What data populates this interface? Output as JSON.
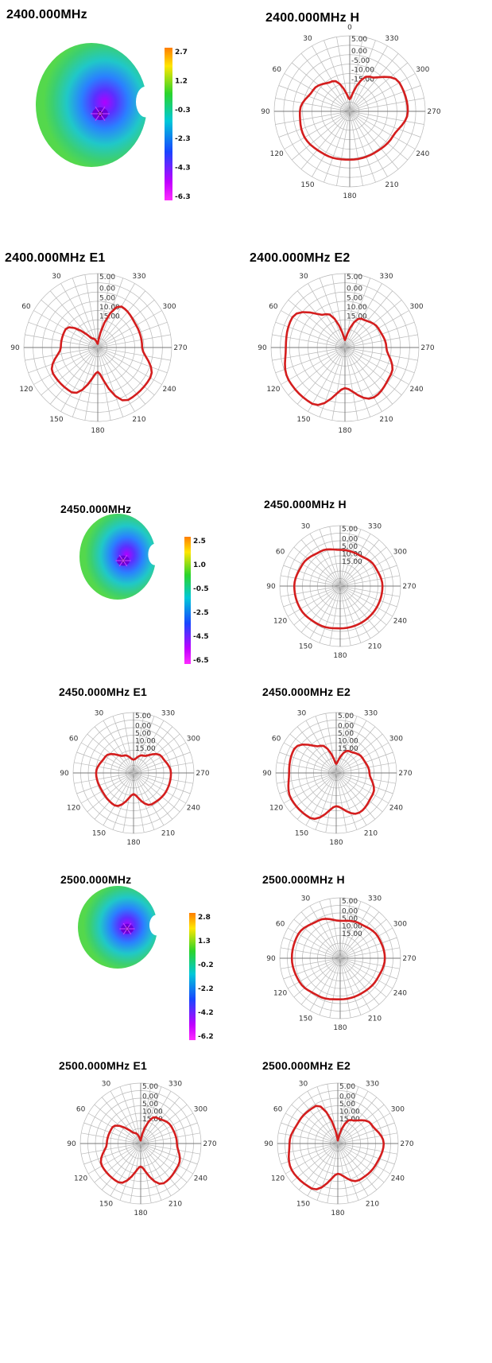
{
  "chart_data": [
    {
      "type": "surface3d",
      "title": "2400.000MHz",
      "colorbar_ticks": [
        "2.7",
        "1.2",
        "-0.3",
        "-2.3",
        "-4.3",
        "-6.3"
      ],
      "colorbar_colors": [
        "#ff7e00",
        "#ffe600",
        "#2bd42b",
        "#00c8d8",
        "#1846ff",
        "#c000ff",
        "#ff2cff"
      ]
    },
    {
      "type": "polar",
      "title": "2400.000MHz  H",
      "radial_labels": [
        "5.00",
        "0.00",
        "-5.00",
        "-10.00",
        "-15.00"
      ],
      "angle_labels": [
        "0",
        "30",
        "60",
        "90",
        "120",
        "150",
        "180",
        "210",
        "240",
        "270",
        "300",
        "330"
      ],
      "angles": [
        0,
        30,
        60,
        90,
        120,
        150,
        180,
        210,
        240,
        270,
        300,
        330
      ],
      "r": [
        0.16,
        0.46,
        0.56,
        0.66,
        0.69,
        0.66,
        0.64,
        0.64,
        0.66,
        0.77,
        0.76,
        0.53
      ]
    },
    {
      "type": "polar",
      "title": "2400.000MHz  E1",
      "radial_labels": [
        "5.00",
        "0.00",
        "5.00",
        "10.00",
        "15.00"
      ],
      "angle_labels": [
        "",
        "30",
        "60",
        "90",
        "120",
        "150",
        "180",
        "210",
        "240",
        "270",
        "300",
        "330"
      ],
      "angles": [
        0,
        30,
        60,
        90,
        120,
        150,
        180,
        210,
        240,
        270,
        300,
        330
      ],
      "r": [
        0.05,
        0.14,
        0.5,
        0.5,
        0.7,
        0.7,
        0.33,
        0.82,
        0.82,
        0.6,
        0.6,
        0.64
      ]
    },
    {
      "type": "polar",
      "title": "2400.000MHz  E2",
      "radial_labels": [
        "5.00",
        "0.00",
        "5.00",
        "10.00",
        "15.00"
      ],
      "angle_labels": [
        "",
        "30",
        "60",
        "90",
        "120",
        "150",
        "180",
        "210",
        "240",
        "270",
        "300",
        "330"
      ],
      "angles": [
        0,
        30,
        60,
        90,
        120,
        150,
        180,
        210,
        240,
        270,
        300,
        330
      ],
      "r": [
        0.1,
        0.52,
        0.82,
        0.8,
        0.88,
        0.88,
        0.55,
        0.78,
        0.72,
        0.56,
        0.52,
        0.45
      ]
    },
    {
      "type": "surface3d",
      "title": "2450.000MHz",
      "colorbar_ticks": [
        "2.5",
        "1.0",
        "-0.5",
        "-2.5",
        "-4.5",
        "-6.5"
      ],
      "colorbar_colors": [
        "#ff7e00",
        "#ffe600",
        "#2bd42b",
        "#00c8d8",
        "#1846ff",
        "#c000ff",
        "#ff2cff"
      ]
    },
    {
      "type": "polar",
      "title": "2450.000MHz  H",
      "radial_labels": [
        "5.00",
        "0.00",
        "5.00",
        "10.00",
        "15.00"
      ],
      "angle_labels": [
        "",
        "30",
        "60",
        "90",
        "120",
        "150",
        "180",
        "210",
        "240",
        "270",
        "300",
        "330"
      ],
      "angles": [
        0,
        30,
        60,
        90,
        120,
        150,
        180,
        210,
        240,
        270,
        300,
        330
      ],
      "r": [
        0.6,
        0.66,
        0.72,
        0.76,
        0.76,
        0.73,
        0.7,
        0.7,
        0.7,
        0.7,
        0.66,
        0.6
      ]
    },
    {
      "type": "polar",
      "title": "2450.000MHz  E1",
      "radial_labels": [
        "5.00",
        "0.00",
        "5.00",
        "10.00",
        "15.00"
      ],
      "angle_labels": [
        "",
        "30",
        "60",
        "90",
        "120",
        "150",
        "180",
        "210",
        "240",
        "270",
        "300",
        "330"
      ],
      "angles": [
        0,
        30,
        60,
        90,
        120,
        150,
        180,
        210,
        240,
        270,
        300,
        330
      ],
      "r": [
        0.22,
        0.33,
        0.54,
        0.62,
        0.6,
        0.62,
        0.35,
        0.6,
        0.62,
        0.62,
        0.54,
        0.33
      ]
    },
    {
      "type": "polar",
      "title": "2450.000MHz  E2",
      "radial_labels": [
        "5.00",
        "0.00",
        "5.00",
        "10.00",
        "15.00"
      ],
      "angle_labels": [
        "",
        "30",
        "60",
        "90",
        "120",
        "150",
        "180",
        "210",
        "240",
        "270",
        "300",
        "330"
      ],
      "angles": [
        0,
        30,
        60,
        90,
        120,
        150,
        180,
        210,
        240,
        270,
        300,
        330
      ],
      "r": [
        0.15,
        0.52,
        0.8,
        0.78,
        0.86,
        0.86,
        0.55,
        0.76,
        0.7,
        0.55,
        0.5,
        0.42
      ]
    },
    {
      "type": "surface3d",
      "title": "2500.000MHz",
      "colorbar_ticks": [
        "2.8",
        "1.3",
        "-0.2",
        "-2.2",
        "-4.2",
        "-6.2"
      ],
      "colorbar_colors": [
        "#ff7e00",
        "#ffe600",
        "#2bd42b",
        "#00c8d8",
        "#1846ff",
        "#c000ff",
        "#ff2cff"
      ]
    },
    {
      "type": "polar",
      "title": "2500.000MHz  H",
      "radial_labels": [
        "5.00",
        "0.00",
        "5.00",
        "10.00",
        "15.00"
      ],
      "angle_labels": [
        "",
        "30",
        "60",
        "90",
        "120",
        "150",
        "180",
        "210",
        "240",
        "270",
        "300",
        "330"
      ],
      "angles": [
        0,
        30,
        60,
        90,
        120,
        150,
        180,
        210,
        240,
        270,
        300,
        330
      ],
      "r": [
        0.62,
        0.72,
        0.8,
        0.8,
        0.78,
        0.72,
        0.68,
        0.68,
        0.7,
        0.74,
        0.72,
        0.66
      ]
    },
    {
      "type": "polar",
      "title": "2500.000MHz  E1",
      "radial_labels": [
        "5.00",
        "0.00",
        "5.00",
        "10.00",
        "15.00"
      ],
      "angle_labels": [
        "",
        "30",
        "60",
        "90",
        "120",
        "150",
        "180",
        "210",
        "240",
        "270",
        "300",
        "330"
      ],
      "angles": [
        0,
        30,
        60,
        90,
        120,
        150,
        180,
        210,
        240,
        270,
        300,
        330
      ],
      "r": [
        0.05,
        0.2,
        0.54,
        0.56,
        0.74,
        0.74,
        0.38,
        0.76,
        0.72,
        0.6,
        0.58,
        0.5
      ]
    },
    {
      "type": "polar",
      "title": "2500.000MHz  E2",
      "radial_labels": [
        "5.00",
        "0.00",
        "5.00",
        "10.00",
        "15.00"
      ],
      "angle_labels": [
        "",
        "30",
        "60",
        "90",
        "120",
        "150",
        "180",
        "210",
        "240",
        "270",
        "300",
        "330"
      ],
      "angles": [
        0,
        30,
        60,
        90,
        120,
        150,
        180,
        210,
        240,
        270,
        300,
        330
      ],
      "r": [
        0.05,
        0.72,
        0.74,
        0.8,
        0.88,
        0.86,
        0.5,
        0.7,
        0.72,
        0.76,
        0.64,
        0.45
      ]
    }
  ]
}
